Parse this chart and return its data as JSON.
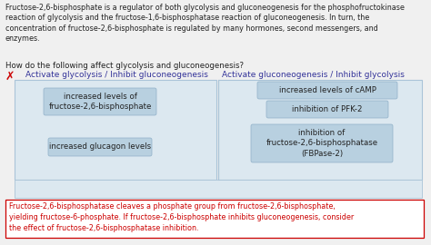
{
  "bg_color": "#f0f0f0",
  "white": "#ffffff",
  "intro_text": "Fructose-2,6-bisphosphate is a regulator of both glycolysis and gluconeogenesis for the phosphofructokinase\nreaction of glycolysis and the fructose-1,6-bisphosphatase reaction of gluconeogenesis. In turn, the\nconcentration of fructose-2,6-bisphosphate is regulated by many hormones, second messengers, and\nenzymes.",
  "question_text": "How do the following affect glycolysis and gluconeogenesis?",
  "col1_header": "Activate glycolysis / Inhibit gluconeogenesis",
  "col2_header": "Activate gluconeogenesis / Inhibit glycolysis",
  "col1_items": [
    "increased levels of\nfructose-2,6-bisphosphate",
    "increased glucagon levels"
  ],
  "col2_items": [
    "increased levels of cAMP",
    "inhibition of PFK-2",
    "inhibition of\nfructose-2,6-bisphosphatase\n(FBPase-2)"
  ],
  "hint_text": "Fructose-2,6-bisphosphatase cleaves a phosphate group from fructose-2,6-bisphosphate,\nyielding fructose-6-phosphate. If fructose-2,6-bisphosphate inhibits gluconeogenesis, consider\nthe effect of fructose-2,6-bisphosphatase inhibition.",
  "item_bg": "#b8d0e0",
  "hint_text_color": "#cc0000",
  "hint_border_color": "#cc0000",
  "left_panel_bg": "#dce8f0",
  "right_panel_bg": "#dce8f0",
  "drop_zone_bg": "#dce8f0",
  "header_color": "#333399",
  "text_color": "#222222",
  "font_size_intro": 5.8,
  "font_size_question": 6.2,
  "font_size_header": 6.5,
  "font_size_item": 6.2,
  "font_size_hint": 5.8,
  "font_size_x": 9.0
}
